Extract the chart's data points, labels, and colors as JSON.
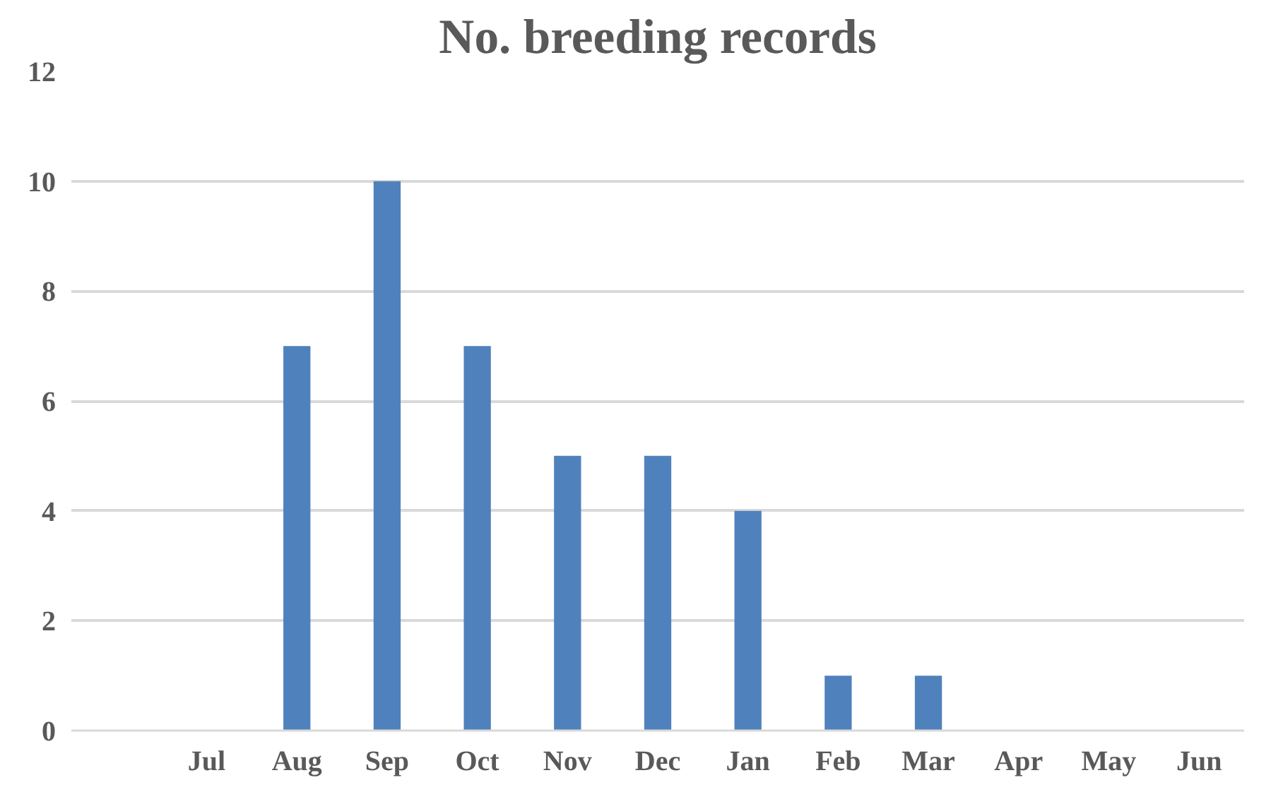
{
  "chart_data": {
    "type": "bar",
    "title": "No. breeding records",
    "categories": [
      null,
      "Jul",
      "Aug",
      "Sep",
      "Oct",
      "Nov",
      "Dec",
      "Jan",
      "Feb",
      "Mar",
      "Apr",
      "May",
      "Jun"
    ],
    "values": [
      null,
      0,
      7,
      10,
      7,
      5,
      5,
      4,
      1,
      1,
      0,
      0,
      0
    ],
    "color": "#4f81bd",
    "ylim": [
      0,
      12
    ],
    "yticks": [
      0,
      2,
      4,
      6,
      8,
      10,
      12
    ],
    "grid": "y"
  }
}
